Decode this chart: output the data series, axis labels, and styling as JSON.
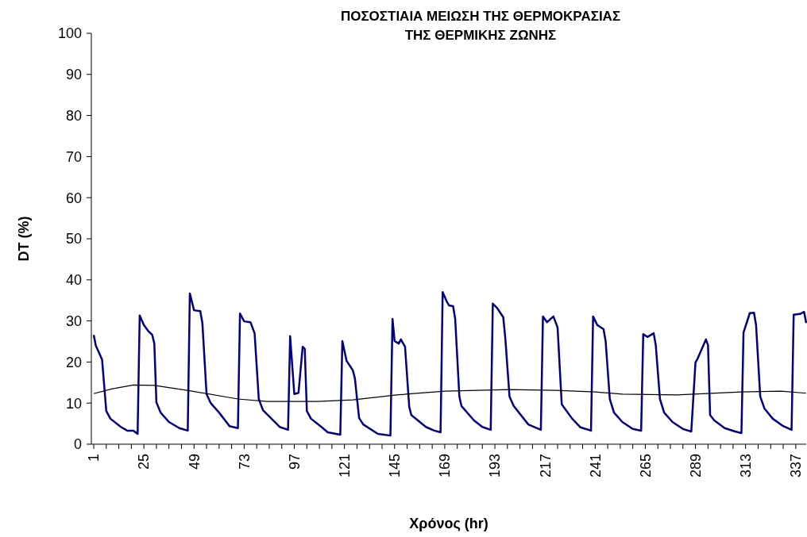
{
  "chart_data": {
    "type": "line",
    "title": "ΠΟΣΟΣΤΙΑΙΑ ΜΕΙΩΣΗ ΤΗΣ ΘΕΡΜΟΚΡΑΣΙΑΣ\nΤΗΣ ΘΕΡΜΙΚΗΣ ΖΩΝΗΣ",
    "xlabel": "Χρόνος (hr)",
    "ylabel": "DT (%)",
    "xlim": [
      1,
      342
    ],
    "ylim": [
      0,
      100
    ],
    "yticks": [
      0,
      10,
      20,
      30,
      40,
      50,
      60,
      70,
      80,
      90,
      100
    ],
    "xticks": [
      1,
      {
        "value": 7,
        "label": null
      },
      {
        "value": 13,
        "label": null
      },
      {
        "value": 19,
        "label": null
      },
      25,
      {
        "value": 31,
        "label": null
      },
      {
        "value": 37,
        "label": null
      },
      {
        "value": 43,
        "label": null
      },
      49,
      {
        "value": 55,
        "label": null
      },
      {
        "value": 61,
        "label": null
      },
      {
        "value": 67,
        "label": null
      },
      73,
      {
        "value": 79,
        "label": null
      },
      {
        "value": 85,
        "label": null
      },
      {
        "value": 91,
        "label": null
      },
      97,
      {
        "value": 103,
        "label": null
      },
      {
        "value": 109,
        "label": null
      },
      {
        "value": 115,
        "label": null
      },
      121,
      {
        "value": 127,
        "label": null
      },
      {
        "value": 133,
        "label": null
      },
      {
        "value": 139,
        "label": null
      },
      145,
      {
        "value": 151,
        "label": null
      },
      {
        "value": 157,
        "label": null
      },
      {
        "value": 163,
        "label": null
      },
      169,
      {
        "value": 175,
        "label": null
      },
      {
        "value": 181,
        "label": null
      },
      {
        "value": 187,
        "label": null
      },
      193,
      {
        "value": 199,
        "label": null
      },
      {
        "value": 205,
        "label": null
      },
      {
        "value": 211,
        "label": null
      },
      217,
      {
        "value": 223,
        "label": null
      },
      {
        "value": 229,
        "label": null
      },
      {
        "value": 235,
        "label": null
      },
      241,
      {
        "value": 247,
        "label": null
      },
      {
        "value": 253,
        "label": null
      },
      {
        "value": 259,
        "label": null
      },
      265,
      {
        "value": 271,
        "label": null
      },
      {
        "value": 277,
        "label": null
      },
      {
        "value": 283,
        "label": null
      },
      289,
      {
        "value": 295,
        "label": null
      },
      {
        "value": 301,
        "label": null
      },
      {
        "value": 307,
        "label": null
      },
      313,
      {
        "value": 319,
        "label": null
      },
      {
        "value": 325,
        "label": null
      },
      {
        "value": 331,
        "label": null
      },
      337
    ],
    "grid": false,
    "series": [
      {
        "color": "#000080",
        "x": [
          1,
          2,
          5,
          7,
          9,
          14,
          17,
          20,
          22,
          23,
          25,
          27,
          29,
          30,
          31,
          33,
          37,
          42,
          46,
          47,
          49,
          52,
          53,
          55,
          57,
          61,
          66,
          70,
          71,
          73,
          76,
          78,
          80,
          82,
          90,
          94,
          95,
          97,
          99,
          101,
          102,
          103,
          105,
          110,
          113,
          119,
          120,
          122,
          125,
          126,
          128,
          130,
          137,
          143,
          144,
          145,
          147,
          148,
          150,
          152,
          153,
          160,
          164,
          167,
          168,
          170,
          171,
          173,
          174,
          176,
          177,
          183,
          187,
          191,
          192,
          194,
          197,
          198,
          200,
          202,
          209,
          215,
          216,
          218,
          221,
          223,
          225,
          230,
          234,
          239,
          240,
          242,
          245,
          246,
          248,
          250,
          254,
          259,
          263,
          264,
          266,
          269,
          270,
          272,
          274,
          278,
          283,
          287,
          289,
          290,
          294,
          295,
          296,
          298,
          303,
          308,
          311,
          312,
          315,
          317,
          318,
          320,
          322,
          326,
          331,
          335,
          336,
          339,
          341,
          342
        ],
        "values": [
          26.6,
          24,
          20.6,
          8.1,
          6.2,
          4.2,
          3.3,
          3.3,
          2.5,
          31.3,
          29,
          27.6,
          26.6,
          24.5,
          10.2,
          7.7,
          5.4,
          3.9,
          3.3,
          36.7,
          32.6,
          32.4,
          29.5,
          12.2,
          10,
          7.7,
          4.4,
          3.9,
          31.8,
          29.9,
          29.7,
          27,
          11,
          8.3,
          4.2,
          3.5,
          26.3,
          12.2,
          12.5,
          23.7,
          23.2,
          8.1,
          6.2,
          4.2,
          2.9,
          2.3,
          25.1,
          20.3,
          18,
          16,
          6.4,
          4.8,
          2.5,
          2.1,
          30.5,
          25.1,
          24.5,
          25.5,
          23.7,
          9.1,
          7.1,
          4.2,
          3.3,
          2.9,
          37,
          34.7,
          33.8,
          33.6,
          30.5,
          11.6,
          9.3,
          5.8,
          4.2,
          3.5,
          34.2,
          33.2,
          30.9,
          25.7,
          11.6,
          9.3,
          4.8,
          3.5,
          31.1,
          29.7,
          31.1,
          28.4,
          9.7,
          6.2,
          4.1,
          3.3,
          31.1,
          29,
          28,
          25.1,
          11,
          7.7,
          5.4,
          3.7,
          3.3,
          26.8,
          26.1,
          27,
          24.1,
          11,
          7.7,
          5.4,
          3.7,
          3.1,
          19.9,
          20.8,
          25.5,
          24.1,
          7.1,
          5.8,
          3.9,
          3.1,
          2.7,
          27.2,
          31.9,
          32,
          29,
          11.6,
          8.7,
          6.2,
          4.4,
          3.5,
          31.5,
          31.7,
          32.2,
          29.5
        ]
      },
      {
        "color": "#000000",
        "x": [
          1,
          10,
          20,
          30,
          47,
          70,
          84,
          108,
          125,
          146,
          169,
          200,
          222,
          241,
          254,
          280,
          311,
          330,
          342
        ],
        "values": [
          12.3,
          13.5,
          14.4,
          14.3,
          13,
          11,
          10.4,
          10.4,
          10.8,
          12,
          12.9,
          13.3,
          13.1,
          12.7,
          12.2,
          12,
          12.7,
          12.9,
          12.4
        ]
      }
    ]
  }
}
